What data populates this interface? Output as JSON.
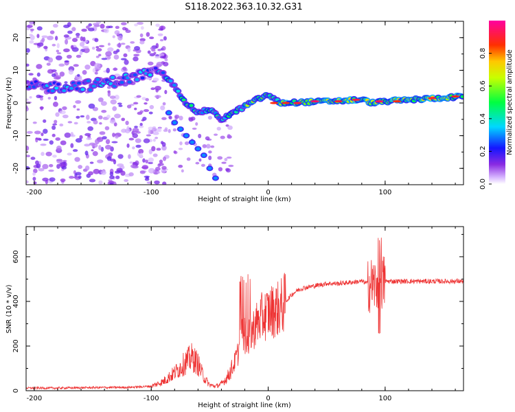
{
  "title": "S118.2022.363.10.32.G31",
  "chart_data": [
    {
      "type": "heatmap",
      "xlabel": "Height of straight line (km)",
      "ylabel": "Frequency (Hz)",
      "xlim": [
        -207,
        167
      ],
      "ylim": [
        -25,
        25
      ],
      "xticks": [
        "-200",
        "-100",
        "0",
        "100"
      ],
      "yticks": [
        "-20",
        "-10",
        "0",
        "10",
        "20"
      ],
      "colorbar": {
        "label": "Normalized spectral amplitude",
        "range": [
          0,
          1
        ],
        "ticks": [
          "0.0",
          "0.2",
          "0.4",
          "0.6",
          "0.8"
        ],
        "colormap": "rainbow (violet → blue → cyan → green → yellow → red → magenta)"
      },
      "ridge": [
        [
          -205,
          5
        ],
        [
          -180,
          5
        ],
        [
          -150,
          5.5
        ],
        [
          -125,
          7
        ],
        [
          -100,
          9.5
        ],
        [
          -90,
          9
        ],
        [
          -80,
          5
        ],
        [
          -70,
          0
        ],
        [
          -60,
          -3
        ],
        [
          -50,
          -2
        ],
        [
          -40,
          -5
        ],
        [
          -30,
          -3
        ],
        [
          -20,
          -1
        ],
        [
          -10,
          1
        ],
        [
          0,
          2.5
        ],
        [
          10,
          0
        ],
        [
          50,
          0.5
        ],
        [
          80,
          1
        ],
        [
          90,
          0
        ],
        [
          100,
          0.5
        ],
        [
          167,
          2
        ]
      ]
    },
    {
      "type": "line",
      "xlabel": "Height of straight line (km)",
      "ylabel": "SNR (10 * v/v)",
      "xlim": [
        -207,
        167
      ],
      "ylim": [
        0,
        735
      ],
      "xticks": [
        "-200",
        "-100",
        "0",
        "100"
      ],
      "yticks": [
        "0",
        "200",
        "400",
        "600"
      ],
      "color": "#ee3333",
      "series": [
        {
          "x": [
            -207,
            -180,
            -150,
            -120,
            -100,
            -90,
            -80,
            -70,
            -65,
            -60,
            -55,
            -50,
            -45,
            -40,
            -35,
            -30,
            -25,
            -22,
            -20,
            -18,
            -15,
            -10,
            -5,
            0,
            5,
            10,
            15,
            20,
            25,
            30,
            40,
            50,
            60,
            70,
            80,
            85,
            90,
            95,
            100,
            110,
            130,
            150,
            167
          ],
          "y": [
            12,
            12,
            14,
            15,
            20,
            40,
            80,
            130,
            150,
            120,
            60,
            25,
            20,
            30,
            60,
            110,
            180,
            280,
            250,
            220,
            260,
            300,
            330,
            350,
            360,
            370,
            400,
            430,
            450,
            460,
            470,
            480,
            480,
            485,
            490,
            480,
            470,
            480,
            490,
            490,
            490,
            490,
            490
          ]
        }
      ]
    }
  ]
}
